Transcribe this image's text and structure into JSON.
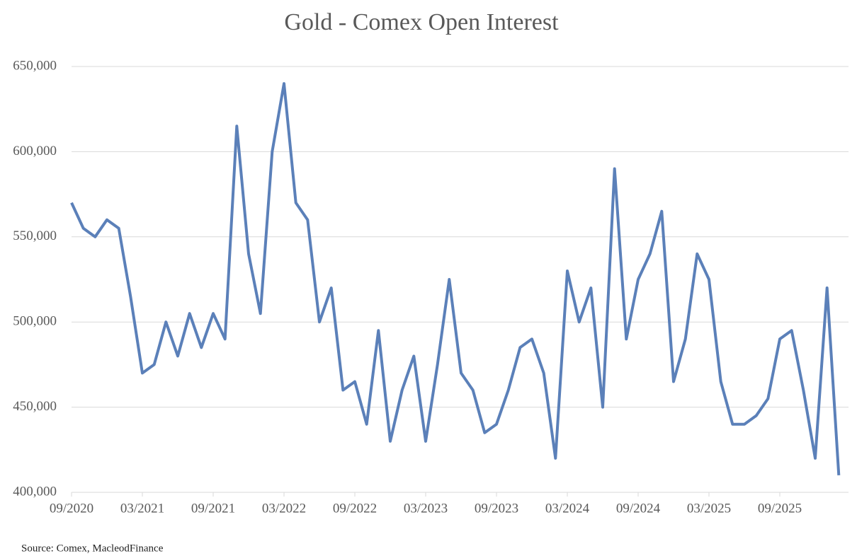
{
  "chart_data": {
    "type": "line",
    "title": "Gold - Comex Open Interest",
    "source": "Source: Comex,  MacleodFinance",
    "x": [
      "09/2020",
      "10/2020",
      "11/2020",
      "12/2020",
      "01/2021",
      "02/2021",
      "03/2021",
      "04/2021",
      "05/2021",
      "06/2021",
      "07/2021",
      "08/2021",
      "09/2021",
      "10/2021",
      "11/2021",
      "12/2021",
      "01/2022",
      "02/2022",
      "03/2022",
      "04/2022",
      "05/2022",
      "06/2022",
      "07/2022",
      "08/2022",
      "09/2022",
      "10/2022",
      "11/2022",
      "12/2022",
      "01/2023",
      "02/2023",
      "03/2023",
      "04/2023",
      "05/2023",
      "06/2023",
      "07/2023",
      "08/2023",
      "09/2023",
      "10/2023",
      "11/2023",
      "12/2023",
      "01/2024",
      "02/2024",
      "03/2024",
      "04/2024",
      "05/2024",
      "06/2024",
      "07/2024",
      "08/2024",
      "09/2024",
      "10/2024",
      "11/2024",
      "12/2024",
      "01/2025",
      "02/2025",
      "03/2025",
      "04/2025",
      "05/2025",
      "06/2025",
      "07/2025",
      "08/2025",
      "09/2025",
      "10/2025",
      "11/2025",
      "12/2025",
      "01/2026",
      "02/2026"
    ],
    "values": [
      570000,
      555000,
      550000,
      560000,
      555000,
      515000,
      470000,
      475000,
      500000,
      480000,
      505000,
      485000,
      505000,
      490000,
      615000,
      540000,
      505000,
      600000,
      640000,
      570000,
      560000,
      500000,
      520000,
      460000,
      465000,
      440000,
      495000,
      430000,
      460000,
      480000,
      430000,
      475000,
      525000,
      470000,
      460000,
      435000,
      440000,
      460000,
      485000,
      490000,
      470000,
      420000,
      530000,
      500000,
      520000,
      450000,
      590000,
      490000,
      525000,
      540000,
      565000,
      465000,
      490000,
      540000,
      525000,
      465000,
      440000,
      440000,
      445000,
      455000,
      490000,
      495000,
      460000,
      420000,
      520000,
      410000
    ],
    "color": "#5b80b9",
    "xticks": [
      "09/2020",
      "03/2021",
      "09/2021",
      "03/2022",
      "09/2022",
      "03/2023",
      "09/2023",
      "03/2024",
      "09/2024",
      "03/2025",
      "09/2025"
    ],
    "ylim": [
      400000,
      650000
    ],
    "yticks": [
      {
        "value": 400000,
        "label": "400,000"
      },
      {
        "value": 450000,
        "label": "450,000"
      },
      {
        "value": 500000,
        "label": "500,000"
      },
      {
        "value": 550000,
        "label": "550,000"
      },
      {
        "value": 600000,
        "label": "600,000"
      },
      {
        "value": 650000,
        "label": "650,000"
      }
    ],
    "grid": true
  }
}
